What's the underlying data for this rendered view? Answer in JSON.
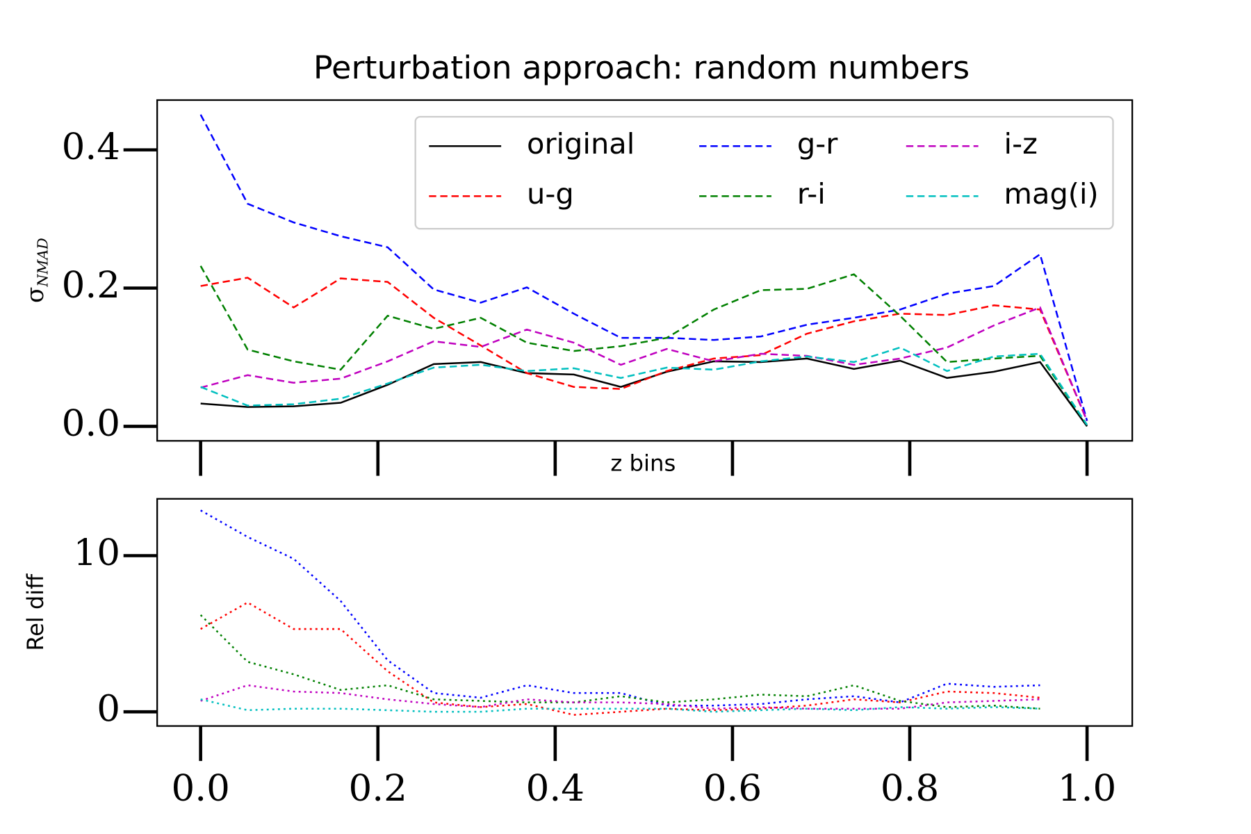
{
  "chart_data": [
    {
      "type": "line",
      "title": "Perturbation approach: random numbers",
      "xlabel": "z bins",
      "ylabel": "σ",
      "ylabel_subscript": "NMAD",
      "x": [
        0,
        0.053,
        0.105,
        0.158,
        0.211,
        0.263,
        0.316,
        0.368,
        0.421,
        0.474,
        0.526,
        0.579,
        0.632,
        0.684,
        0.737,
        0.789,
        0.842,
        0.895,
        0.947,
        1.0
      ],
      "xlim": [
        -0.049,
        1.051
      ],
      "xticks": [
        0,
        0.2,
        0.4,
        0.6,
        0.8,
        1.0
      ],
      "ylim": [
        -0.021,
        0.472
      ],
      "yticks": [
        {
          "value": 0,
          "label": "0.0"
        },
        {
          "value": 0.2,
          "label": "0.2"
        },
        {
          "value": 0.4,
          "label": "0.4"
        }
      ],
      "legend": "upper right",
      "legend_columns": 3,
      "series": [
        {
          "name": "original",
          "color": "#000000",
          "style": "solid",
          "values": [
            0.033,
            0.028,
            0.029,
            0.034,
            0.06,
            0.09,
            0.093,
            0.077,
            0.075,
            0.057,
            0.079,
            0.094,
            0.093,
            0.098,
            0.083,
            0.095,
            0.07,
            0.079,
            0.093,
            0
          ]
        },
        {
          "name": "u-g",
          "color": "#ff0000",
          "style": "dashed",
          "values": [
            0.203,
            0.215,
            0.172,
            0.214,
            0.209,
            0.157,
            0.117,
            0.077,
            0.057,
            0.054,
            0.08,
            0.098,
            0.103,
            0.134,
            0.152,
            0.163,
            0.161,
            0.175,
            0.169,
            0.008
          ]
        },
        {
          "name": "g-r",
          "color": "#0000ff",
          "style": "dashed",
          "values": [
            0.451,
            0.322,
            0.295,
            0.275,
            0.259,
            0.198,
            0.179,
            0.201,
            0.163,
            0.128,
            0.128,
            0.125,
            0.13,
            0.147,
            0.157,
            0.169,
            0.192,
            0.203,
            0.249,
            0.008
          ]
        },
        {
          "name": "r-i",
          "color": "#008000",
          "style": "dashed",
          "values": [
            0.232,
            0.111,
            0.094,
            0.082,
            0.16,
            0.141,
            0.157,
            0.121,
            0.109,
            0.116,
            0.128,
            0.169,
            0.197,
            0.199,
            0.22,
            0.16,
            0.093,
            0.098,
            0.102,
            0.002
          ]
        },
        {
          "name": "i-z",
          "color": "#bf00bf",
          "style": "dashed",
          "values": [
            0.056,
            0.074,
            0.063,
            0.069,
            0.094,
            0.123,
            0.115,
            0.14,
            0.121,
            0.089,
            0.112,
            0.094,
            0.105,
            0.102,
            0.089,
            0.098,
            0.114,
            0.146,
            0.172,
            0.008
          ]
        },
        {
          "name": "mag(i)",
          "color": "#00bfbf",
          "style": "dashed",
          "values": [
            0.057,
            0.03,
            0.032,
            0.04,
            0.062,
            0.085,
            0.089,
            0.08,
            0.084,
            0.07,
            0.085,
            0.082,
            0.094,
            0.101,
            0.093,
            0.114,
            0.08,
            0.101,
            0.105,
            0.002
          ]
        }
      ]
    },
    {
      "type": "line",
      "ylabel": "Rel diff",
      "x": [
        0,
        0.053,
        0.105,
        0.158,
        0.211,
        0.263,
        0.316,
        0.368,
        0.421,
        0.474,
        0.526,
        0.579,
        0.632,
        0.684,
        0.737,
        0.789,
        0.842,
        0.895,
        0.947
      ],
      "xlim": [
        -0.049,
        1.051
      ],
      "xticks": [
        {
          "value": 0,
          "label": "0.0"
        },
        {
          "value": 0.2,
          "label": "0.2"
        },
        {
          "value": 0.4,
          "label": "0.4"
        },
        {
          "value": 0.6,
          "label": "0.6"
        },
        {
          "value": 0.8,
          "label": "0.8"
        },
        {
          "value": 1.0,
          "label": "1.0"
        }
      ],
      "ylim": [
        -0.91,
        13.64
      ],
      "yticks": [
        0,
        10
      ],
      "series": [
        {
          "color": "#ff0000",
          "style": "dotted",
          "values": [
            5.3,
            7.0,
            5.3,
            5.3,
            2.6,
            0.6,
            0.3,
            0.5,
            -0.2,
            0,
            0.2,
            0.1,
            0.2,
            0.4,
            0.8,
            0.6,
            1.3,
            1.2,
            0.9
          ]
        },
        {
          "color": "#0000ff",
          "style": "dotted",
          "values": [
            12.9,
            11.2,
            9.8,
            7.1,
            3.3,
            1.2,
            0.9,
            1.7,
            1.2,
            1.2,
            0.4,
            0.4,
            0.5,
            0.8,
            1.0,
            0.6,
            1.8,
            1.6,
            1.7
          ]
        },
        {
          "color": "#008000",
          "style": "dotted",
          "values": [
            6.2,
            3.2,
            2.4,
            1.4,
            1.7,
            0.8,
            0.7,
            0.6,
            0.6,
            1.0,
            0.6,
            0.8,
            1.1,
            1.0,
            1.7,
            0.7,
            0.3,
            0.4,
            0.2
          ]
        },
        {
          "color": "#bf00bf",
          "style": "dotted",
          "values": [
            0.7,
            1.7,
            1.3,
            1.2,
            0.8,
            0.5,
            0.3,
            0.8,
            0.6,
            0.6,
            0.5,
            0.2,
            0.3,
            0.2,
            0.2,
            0.2,
            0.6,
            0.7,
            0.8
          ]
        },
        {
          "color": "#00bfbf",
          "style": "dotted",
          "values": [
            0.8,
            0.1,
            0.2,
            0.2,
            0.1,
            0,
            0,
            0.2,
            0.2,
            0.2,
            0.2,
            0,
            0.1,
            0.2,
            0.1,
            0.3,
            0.2,
            0.3,
            0.2
          ]
        }
      ]
    }
  ]
}
